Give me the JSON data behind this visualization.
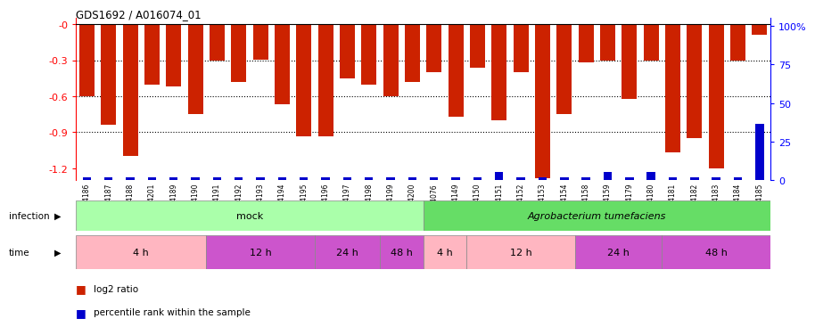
{
  "title": "GDS1692 / A016074_01",
  "samples": [
    "GSM94186",
    "GSM94187",
    "GSM94188",
    "GSM94201",
    "GSM94189",
    "GSM94190",
    "GSM94191",
    "GSM94192",
    "GSM94193",
    "GSM94194",
    "GSM94195",
    "GSM94196",
    "GSM94197",
    "GSM94198",
    "GSM94199",
    "GSM94200",
    "GSM94076",
    "GSM94149",
    "GSM94150",
    "GSM94151",
    "GSM94152",
    "GSM94153",
    "GSM94154",
    "GSM94158",
    "GSM94159",
    "GSM94179",
    "GSM94180",
    "GSM94181",
    "GSM94182",
    "GSM94183",
    "GSM94184",
    "GSM94185"
  ],
  "log2_ratio": [
    -0.6,
    -0.84,
    -1.1,
    -0.5,
    -0.52,
    -0.75,
    -0.3,
    -0.48,
    -0.295,
    -0.67,
    -0.93,
    -0.93,
    -0.45,
    -0.5,
    -0.6,
    -0.48,
    -0.4,
    -0.77,
    -0.36,
    -0.8,
    -0.4,
    -1.28,
    -0.75,
    -0.32,
    -0.3,
    -0.62,
    -0.3,
    -1.07,
    -0.95,
    -1.2,
    -0.3,
    -0.09
  ],
  "percentile": [
    2,
    2,
    2,
    2,
    2,
    2,
    2,
    2,
    2,
    2,
    2,
    2,
    2,
    2,
    2,
    2,
    2,
    2,
    2,
    5,
    2,
    2,
    2,
    2,
    5,
    2,
    5,
    2,
    2,
    2,
    2,
    35
  ],
  "ylim_left": [
    -1.3,
    0.05
  ],
  "ylim_right": [
    0,
    105
  ],
  "yticks_left": [
    0.0,
    -0.3,
    -0.6,
    -0.9,
    -1.2
  ],
  "yticks_right": [
    0,
    25,
    50,
    75,
    100
  ],
  "bar_color": "#CC2200",
  "percentile_color": "#0000CC",
  "background_color": "#FFFFFF",
  "infection_mock_color": "#AAFFAA",
  "infection_agro_color": "#66DD66",
  "time_pink": "#FFB6C1",
  "time_purple": "#CC55CC",
  "time_groups": [
    {
      "label": "4 h",
      "start": 0,
      "end": 6,
      "color": "#FFB6C1"
    },
    {
      "label": "12 h",
      "start": 6,
      "end": 11,
      "color": "#CC55CC"
    },
    {
      "label": "24 h",
      "start": 11,
      "end": 14,
      "color": "#CC55CC"
    },
    {
      "label": "48 h",
      "start": 14,
      "end": 16,
      "color": "#CC55CC"
    },
    {
      "label": "4 h",
      "start": 16,
      "end": 18,
      "color": "#FFB6C1"
    },
    {
      "label": "12 h",
      "start": 18,
      "end": 23,
      "color": "#FFB6C1"
    },
    {
      "label": "24 h",
      "start": 23,
      "end": 27,
      "color": "#CC55CC"
    },
    {
      "label": "48 h",
      "start": 27,
      "end": 32,
      "color": "#CC55CC"
    }
  ]
}
